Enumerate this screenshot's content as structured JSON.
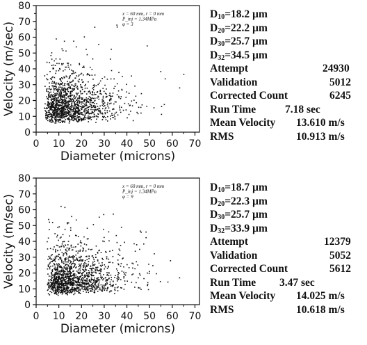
{
  "chart_data": [
    {
      "type": "scatter",
      "xlabel": "Diameter (microns)",
      "ylabel": "Velocity (m/sec)",
      "xlim": [
        0,
        72
      ],
      "ylim": [
        0,
        80
      ],
      "xticks": [
        "0",
        "10",
        "20",
        "30",
        "40",
        "50",
        "60",
        "70"
      ],
      "yticks": [
        "0",
        "10",
        "20",
        "30",
        "40",
        "50",
        "60",
        "70",
        "80"
      ],
      "annotation": [
        "x = 60 mm,   r = 0 mm",
        "P_inj = 1.34MPa",
        "φ = 3"
      ],
      "point_count_shown": 1400,
      "distribution": {
        "x_mode": 10,
        "x_spread": 12,
        "x_max": 72,
        "y_mode": 9,
        "y_spread": 12,
        "y_max": 70
      },
      "stats": {
        "d10": {
          "label": "D",
          "sub": "10",
          "value": "=18.2 µm"
        },
        "d20": {
          "label": "D",
          "sub": "20",
          "value": "=22.2 µm"
        },
        "d30": {
          "label": "D",
          "sub": "30",
          "value": "=25.7 µm"
        },
        "d32": {
          "label": "D",
          "sub": "32",
          "value": "=34.5 µm"
        },
        "rows": [
          {
            "label": "Attempt",
            "value": "24930"
          },
          {
            "label": "Validation",
            "value": "5012"
          },
          {
            "label": "Corrected Count",
            "value": "6245"
          },
          {
            "label": "Run  Time",
            "value": "7.18 sec"
          },
          {
            "label": "Mean Velocity",
            "value": "13.610 m/s"
          },
          {
            "label": "RMS",
            "value": "10.913 m/s"
          }
        ]
      }
    },
    {
      "type": "scatter",
      "xlabel": "Diameter (microns)",
      "ylabel": "Velocity (m/sec)",
      "xlim": [
        0,
        72
      ],
      "ylim": [
        0,
        80
      ],
      "xticks": [
        "0",
        "10",
        "20",
        "30",
        "40",
        "50",
        "60",
        "70"
      ],
      "yticks": [
        "0",
        "10",
        "20",
        "30",
        "40",
        "50",
        "60",
        "70",
        "80"
      ],
      "annotation": [
        "x = 60 mm,   r = 0 mm",
        "P_inj = 1.34MPa",
        "φ = 9"
      ],
      "point_count_shown": 1400,
      "distribution": {
        "x_mode": 12,
        "x_spread": 13,
        "x_max": 72,
        "y_mode": 10,
        "y_spread": 12,
        "y_max": 68
      },
      "stats": {
        "d10": {
          "label": "D",
          "sub": "10",
          "value": "=18.7 µm"
        },
        "d20": {
          "label": "D",
          "sub": "20",
          "value": "=22.3 µm"
        },
        "d30": {
          "label": "D",
          "sub": "30",
          "value": "=25.7 µm"
        },
        "d32": {
          "label": "D",
          "sub": "32",
          "value": "=33.9 µm"
        },
        "rows": [
          {
            "label": "Attempt",
            "value": "12379"
          },
          {
            "label": "Validation",
            "value": "5052"
          },
          {
            "label": "Corrected Count",
            "value": "5612"
          },
          {
            "label": "Run  Time",
            "value": "3.47 sec"
          },
          {
            "label": "Mean Velocity",
            "value": "14.025 m/s"
          },
          {
            "label": "RMS",
            "value": "10.618 m/s"
          }
        ]
      }
    }
  ]
}
